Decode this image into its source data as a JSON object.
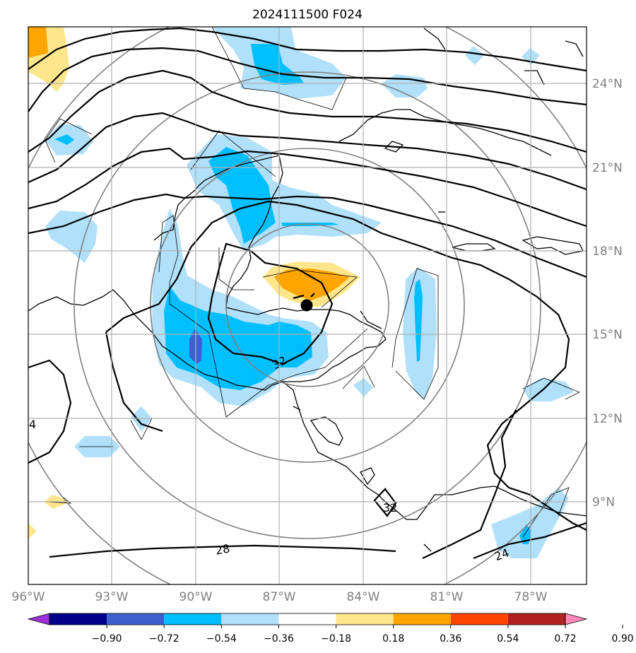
{
  "title": "2024111500 F024",
  "lat_labels": [
    "24°N",
    "21°N",
    "18°N",
    "15°N",
    "12°N",
    "9°N"
  ],
  "lon_labels": [
    "96°W",
    "93°W",
    "90°W",
    "87°W",
    "84°W",
    "81°W",
    "78°W"
  ],
  "contour_labels": [
    "32",
    "32",
    "28",
    "24",
    "4"
  ],
  "colorbar": {
    "ticks": [
      "−0.90",
      "−0.72",
      "−0.54",
      "−0.36",
      "−0.18",
      "0.18",
      "0.36",
      "0.54",
      "0.72",
      "0.90"
    ],
    "colors": [
      "#9b30d9",
      "#00008b",
      "#3d5fd0",
      "#00bfff",
      "#b0e0fa",
      "#ffffff",
      "#ffe68c",
      "#ffa500",
      "#ff4500",
      "#b22222",
      "#ff88b8"
    ]
  },
  "fill_colors": {
    "light_blue": "#b0e0fa",
    "deep_sky": "#00bfff",
    "royal_blue": "#3d5fd0",
    "light_yellow": "#ffe68c",
    "orange": "#ffa500"
  },
  "storm_center": {
    "lat": 16.1,
    "lon": -85.9
  }
}
